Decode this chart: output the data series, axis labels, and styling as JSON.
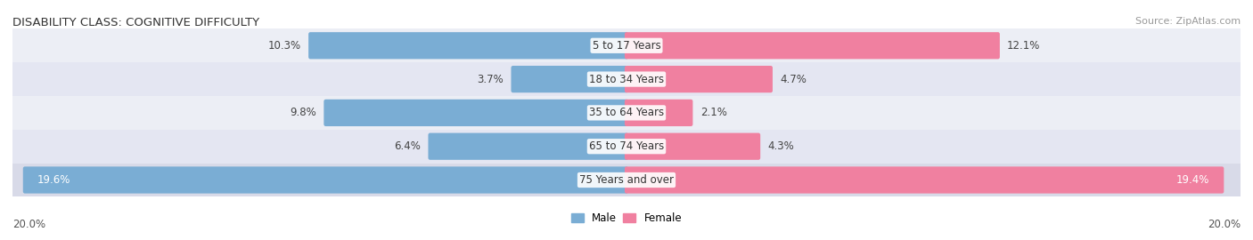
{
  "title": "DISABILITY CLASS: COGNITIVE DIFFICULTY",
  "source_text": "Source: ZipAtlas.com",
  "categories": [
    "5 to 17 Years",
    "18 to 34 Years",
    "35 to 64 Years",
    "65 to 74 Years",
    "75 Years and over"
  ],
  "male_values": [
    10.3,
    3.7,
    9.8,
    6.4,
    19.6
  ],
  "female_values": [
    12.1,
    4.7,
    2.1,
    4.3,
    19.4
  ],
  "x_max": 20.0,
  "male_color": "#7aadd4",
  "female_color": "#f080a0",
  "row_bg_colors": [
    "#eceef4",
    "#e2e4ee"
  ],
  "last_row_bg": "#d8dae8",
  "axis_label_left": "20.0%",
  "axis_label_right": "20.0%",
  "title_fontsize": 9.5,
  "source_fontsize": 8,
  "bar_label_fontsize": 8.5,
  "category_fontsize": 8.5,
  "axis_fontsize": 8.5,
  "legend_fontsize": 8.5
}
